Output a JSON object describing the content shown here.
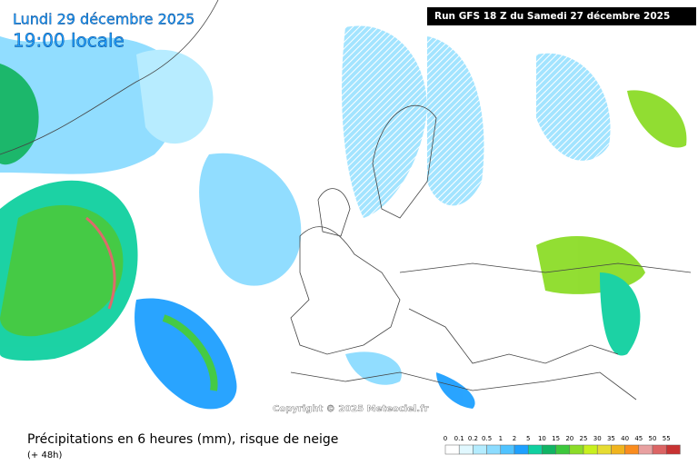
{
  "map": {
    "date": "Lundi 29 décembre 2025",
    "time": "19:00 locale",
    "run": "Run GFS 18 Z du Samedi 27 décembre 2025",
    "copyright": "Copyright © 2025 Meteociel.fr"
  },
  "footer": {
    "title": "Précipitations en 6 heures (mm), risque de neige",
    "subtitle": "(+ 48h)"
  },
  "legend": [
    {
      "label": "0",
      "color": "#ffffff"
    },
    {
      "label": "0.1",
      "color": "#e1f8ff"
    },
    {
      "label": "0.2",
      "color": "#b4ecff"
    },
    {
      "label": "0.5",
      "color": "#8cdcff"
    },
    {
      "label": "1",
      "color": "#50c3ff"
    },
    {
      "label": "2",
      "color": "#1ea0ff"
    },
    {
      "label": "5",
      "color": "#10d0a0"
    },
    {
      "label": "10",
      "color": "#10b464"
    },
    {
      "label": "15",
      "color": "#3cc83c"
    },
    {
      "label": "20",
      "color": "#8cdc28"
    },
    {
      "label": "25",
      "color": "#c8f01e"
    },
    {
      "label": "30",
      "color": "#e6dc32"
    },
    {
      "label": "35",
      "color": "#f0b41e"
    },
    {
      "label": "40",
      "color": "#fa8c1e"
    },
    {
      "label": "45",
      "color": "#e8a0a0"
    },
    {
      "label": "50",
      "color": "#dc6464"
    },
    {
      "label": "55",
      "color": "#c83232"
    }
  ]
}
